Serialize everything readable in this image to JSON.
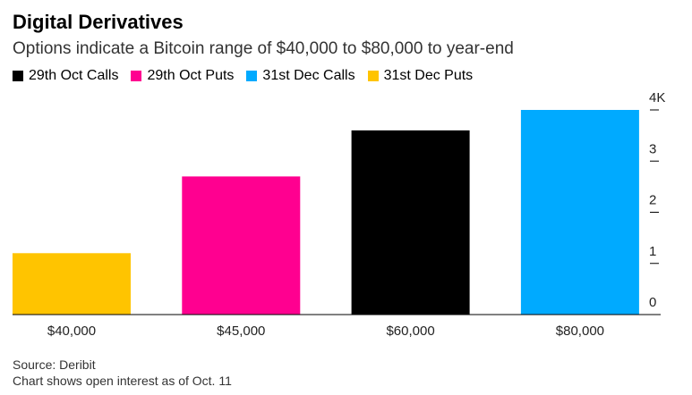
{
  "chart_data": {
    "type": "bar",
    "title": "Digital Derivatives",
    "subtitle": "Options indicate a Bitcoin range of $40,000 to $80,000 to year-end",
    "categories": [
      "$40,000",
      "$45,000",
      "$60,000",
      "$80,000"
    ],
    "values": [
      1.2,
      2.7,
      3.6,
      4.0
    ],
    "bar_series": [
      "31st Dec Puts",
      "29th Oct Puts",
      "29th Oct Calls",
      "31st Dec Calls"
    ],
    "legend": [
      {
        "name": "29th Oct Calls",
        "color": "#000000"
      },
      {
        "name": "29th Oct Puts",
        "color": "#ff0090"
      },
      {
        "name": "31st Dec Calls",
        "color": "#00aaff"
      },
      {
        "name": "31st Dec Puts",
        "color": "#ffc400"
      }
    ],
    "y_ticks": [
      "0",
      "1",
      "2",
      "3",
      "4K"
    ],
    "y_tick_values": [
      0,
      1,
      2,
      3,
      4
    ],
    "ylim": [
      0,
      4
    ],
    "legend_position": "top-left",
    "grid": false
  },
  "footer": {
    "source": "Source: Deribit",
    "note": "Chart shows open interest as of Oct. 11"
  }
}
